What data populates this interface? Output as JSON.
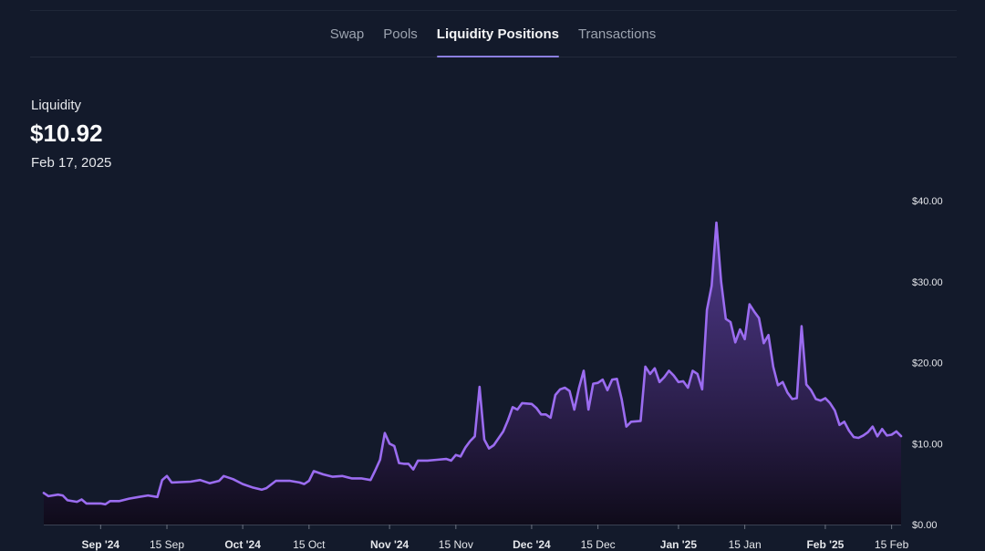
{
  "tabs": [
    {
      "label": "Swap",
      "active": false
    },
    {
      "label": "Pools",
      "active": false
    },
    {
      "label": "Liquidity Positions",
      "active": true
    },
    {
      "label": "Transactions",
      "active": false
    }
  ],
  "metric": {
    "label": "Liquidity",
    "value": "$10.92",
    "date": "Feb 17, 2025"
  },
  "colors": {
    "background": "#131a2b",
    "line": "#9b6cf0",
    "area_top": "#5b3f9e",
    "area_bottom": "#0f0b1a",
    "tab_underline": "#8b7fe0"
  },
  "chart_data": {
    "type": "area",
    "x_range": [
      "2024-08-20",
      "2025-02-17"
    ],
    "ylim": [
      0,
      40
    ],
    "y_ticks": [
      {
        "value": 0,
        "label": "$0.00"
      },
      {
        "value": 10,
        "label": "$10.00"
      },
      {
        "value": 20,
        "label": "$20.00"
      },
      {
        "value": 30,
        "label": "$30.00"
      },
      {
        "value": 40,
        "label": "$40.00"
      }
    ],
    "x_ticks": [
      {
        "date": "2024-09-01",
        "label": "Sep '24",
        "bold": true
      },
      {
        "date": "2024-09-15",
        "label": "15 Sep",
        "bold": false
      },
      {
        "date": "2024-10-01",
        "label": "Oct '24",
        "bold": true
      },
      {
        "date": "2024-10-15",
        "label": "15 Oct",
        "bold": false
      },
      {
        "date": "2024-11-01",
        "label": "Nov '24",
        "bold": true
      },
      {
        "date": "2024-11-15",
        "label": "15 Nov",
        "bold": false
      },
      {
        "date": "2024-12-01",
        "label": "Dec '24",
        "bold": true
      },
      {
        "date": "2024-12-15",
        "label": "15 Dec",
        "bold": false
      },
      {
        "date": "2025-01-01",
        "label": "Jan '25",
        "bold": true
      },
      {
        "date": "2025-01-15",
        "label": "15 Jan",
        "bold": false
      },
      {
        "date": "2025-02-01",
        "label": "Feb '25",
        "bold": true
      },
      {
        "date": "2025-02-15",
        "label": "15 Feb",
        "bold": false
      }
    ],
    "series": [
      {
        "points": [
          [
            "2024-08-20",
            3.9
          ],
          [
            "2024-08-21",
            3.5
          ],
          [
            "2024-08-23",
            3.7
          ],
          [
            "2024-08-24",
            3.6
          ],
          [
            "2024-08-25",
            3.0
          ],
          [
            "2024-08-27",
            2.8
          ],
          [
            "2024-08-28",
            3.1
          ],
          [
            "2024-08-29",
            2.6
          ],
          [
            "2024-09-01",
            2.6
          ],
          [
            "2024-09-02",
            2.5
          ],
          [
            "2024-09-03",
            2.9
          ],
          [
            "2024-09-05",
            2.9
          ],
          [
            "2024-09-07",
            3.2
          ],
          [
            "2024-09-09",
            3.4
          ],
          [
            "2024-09-11",
            3.6
          ],
          [
            "2024-09-13",
            3.4
          ],
          [
            "2024-09-14",
            5.5
          ],
          [
            "2024-09-15",
            6.0
          ],
          [
            "2024-09-16",
            5.2
          ],
          [
            "2024-09-20",
            5.3
          ],
          [
            "2024-09-22",
            5.5
          ],
          [
            "2024-09-24",
            5.1
          ],
          [
            "2024-09-26",
            5.4
          ],
          [
            "2024-09-27",
            6.0
          ],
          [
            "2024-09-29",
            5.6
          ],
          [
            "2024-10-01",
            5.0
          ],
          [
            "2024-10-03",
            4.6
          ],
          [
            "2024-10-05",
            4.3
          ],
          [
            "2024-10-06",
            4.5
          ],
          [
            "2024-10-08",
            5.4
          ],
          [
            "2024-10-11",
            5.4
          ],
          [
            "2024-10-13",
            5.2
          ],
          [
            "2024-10-14",
            5.0
          ],
          [
            "2024-10-15",
            5.4
          ],
          [
            "2024-10-16",
            6.6
          ],
          [
            "2024-10-18",
            6.2
          ],
          [
            "2024-10-20",
            5.9
          ],
          [
            "2024-10-22",
            6.0
          ],
          [
            "2024-10-24",
            5.7
          ],
          [
            "2024-10-26",
            5.7
          ],
          [
            "2024-10-28",
            5.5
          ],
          [
            "2024-10-29",
            6.7
          ],
          [
            "2024-10-30",
            8.0
          ],
          [
            "2024-10-31",
            11.3
          ],
          [
            "2024-11-01",
            10.0
          ],
          [
            "2024-11-02",
            9.7
          ],
          [
            "2024-11-03",
            7.6
          ],
          [
            "2024-11-04",
            7.5
          ],
          [
            "2024-11-05",
            7.5
          ],
          [
            "2024-11-06",
            6.8
          ],
          [
            "2024-11-07",
            7.9
          ],
          [
            "2024-11-09",
            7.9
          ],
          [
            "2024-11-11",
            8.0
          ],
          [
            "2024-11-13",
            8.1
          ],
          [
            "2024-11-14",
            7.9
          ],
          [
            "2024-11-15",
            8.6
          ],
          [
            "2024-11-16",
            8.4
          ],
          [
            "2024-11-17",
            9.5
          ],
          [
            "2024-11-18",
            10.3
          ],
          [
            "2024-11-19",
            10.9
          ],
          [
            "2024-11-20",
            17.0
          ],
          [
            "2024-11-21",
            10.5
          ],
          [
            "2024-11-22",
            9.4
          ],
          [
            "2024-11-23",
            9.8
          ],
          [
            "2024-11-25",
            11.5
          ],
          [
            "2024-11-26",
            12.9
          ],
          [
            "2024-11-27",
            14.5
          ],
          [
            "2024-11-28",
            14.2
          ],
          [
            "2024-11-29",
            15.0
          ],
          [
            "2024-12-01",
            14.9
          ],
          [
            "2024-12-02",
            14.4
          ],
          [
            "2024-12-03",
            13.6
          ],
          [
            "2024-12-04",
            13.6
          ],
          [
            "2024-12-05",
            13.2
          ],
          [
            "2024-12-06",
            16.0
          ],
          [
            "2024-12-07",
            16.7
          ],
          [
            "2024-12-08",
            16.9
          ],
          [
            "2024-12-09",
            16.5
          ],
          [
            "2024-12-10",
            14.2
          ],
          [
            "2024-12-11",
            16.9
          ],
          [
            "2024-12-12",
            19.0
          ],
          [
            "2024-12-13",
            14.2
          ],
          [
            "2024-12-14",
            17.4
          ],
          [
            "2024-12-15",
            17.5
          ],
          [
            "2024-12-16",
            17.9
          ],
          [
            "2024-12-17",
            16.6
          ],
          [
            "2024-12-18",
            17.9
          ],
          [
            "2024-12-19",
            18.0
          ],
          [
            "2024-12-20",
            15.5
          ],
          [
            "2024-12-21",
            12.1
          ],
          [
            "2024-12-22",
            12.7
          ],
          [
            "2024-12-24",
            12.8
          ],
          [
            "2024-12-25",
            19.5
          ],
          [
            "2024-12-26",
            18.6
          ],
          [
            "2024-12-27",
            19.3
          ],
          [
            "2024-12-28",
            17.6
          ],
          [
            "2024-12-29",
            18.2
          ],
          [
            "2024-12-30",
            19.0
          ],
          [
            "2024-12-31",
            18.4
          ],
          [
            "2025-01-01",
            17.6
          ],
          [
            "2025-01-02",
            17.7
          ],
          [
            "2025-01-03",
            16.9
          ],
          [
            "2025-01-04",
            19.0
          ],
          [
            "2025-01-05",
            18.6
          ],
          [
            "2025-01-06",
            16.7
          ],
          [
            "2025-01-07",
            26.5
          ],
          [
            "2025-01-08",
            29.5
          ],
          [
            "2025-01-09",
            37.3
          ],
          [
            "2025-01-10",
            30.0
          ],
          [
            "2025-01-11",
            25.4
          ],
          [
            "2025-01-12",
            25.0
          ],
          [
            "2025-01-13",
            22.5
          ],
          [
            "2025-01-14",
            24.1
          ],
          [
            "2025-01-15",
            22.9
          ],
          [
            "2025-01-16",
            27.2
          ],
          [
            "2025-01-17",
            26.3
          ],
          [
            "2025-01-18",
            25.5
          ],
          [
            "2025-01-19",
            22.4
          ],
          [
            "2025-01-20",
            23.4
          ],
          [
            "2025-01-21",
            19.5
          ],
          [
            "2025-01-22",
            17.2
          ],
          [
            "2025-01-23",
            17.6
          ],
          [
            "2025-01-24",
            16.3
          ],
          [
            "2025-01-25",
            15.5
          ],
          [
            "2025-01-26",
            15.6
          ],
          [
            "2025-01-27",
            24.5
          ],
          [
            "2025-01-28",
            17.3
          ],
          [
            "2025-01-29",
            16.6
          ],
          [
            "2025-01-30",
            15.5
          ],
          [
            "2025-01-31",
            15.3
          ],
          [
            "2025-02-01",
            15.6
          ],
          [
            "2025-02-02",
            15.0
          ],
          [
            "2025-02-03",
            14.1
          ],
          [
            "2025-02-04",
            12.3
          ],
          [
            "2025-02-05",
            12.7
          ],
          [
            "2025-02-06",
            11.6
          ],
          [
            "2025-02-07",
            10.8
          ],
          [
            "2025-02-08",
            10.7
          ],
          [
            "2025-02-09",
            11.0
          ],
          [
            "2025-02-10",
            11.4
          ],
          [
            "2025-02-11",
            12.1
          ],
          [
            "2025-02-12",
            10.9
          ],
          [
            "2025-02-13",
            11.8
          ],
          [
            "2025-02-14",
            11.0
          ],
          [
            "2025-02-15",
            11.1
          ],
          [
            "2025-02-16",
            11.5
          ],
          [
            "2025-02-17",
            10.92
          ]
        ]
      }
    ],
    "grid": false,
    "legend": "none"
  }
}
